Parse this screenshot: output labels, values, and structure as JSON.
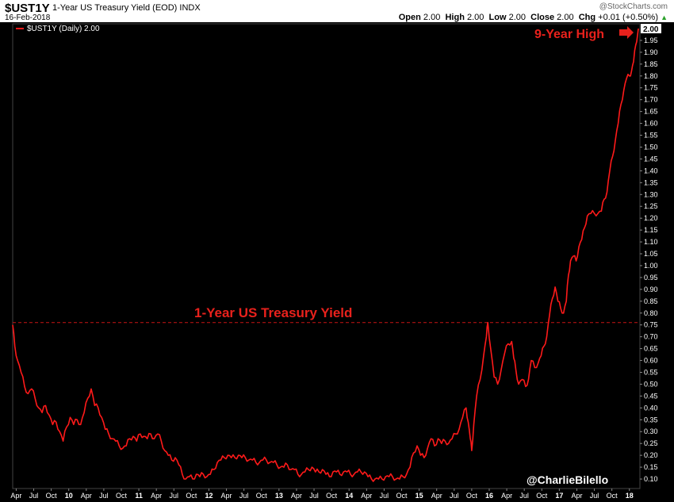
{
  "header": {
    "symbol": "$UST1Y",
    "name": "1-Year US Treasury Yield (EOD)",
    "exchange": "INDX",
    "date": "16-Feb-2018",
    "copyright": "@StockCharts.com",
    "open_label": "Open",
    "open": "2.00",
    "high_label": "High",
    "high": "2.00",
    "low_label": "Low",
    "low": "2.00",
    "close_label": "Close",
    "close": "2.00",
    "chg_label": "Chg",
    "chg": "+0.01 (+0.50%)"
  },
  "chart_data": {
    "type": "line",
    "legend": "$UST1Y (Daily) 2.00",
    "annotation_title": "1-Year US Treasury Yield",
    "annotation_high": "9-Year High",
    "credit": "@CharlieBilello",
    "last_value_label": "2.00",
    "reference_value": 0.76,
    "ylim": [
      0.06,
      2.02
    ],
    "yticks": [
      0.1,
      0.15,
      0.2,
      0.25,
      0.3,
      0.35,
      0.4,
      0.45,
      0.5,
      0.55,
      0.6,
      0.65,
      0.7,
      0.75,
      0.8,
      0.85,
      0.9,
      0.95,
      1.0,
      1.05,
      1.1,
      1.15,
      1.2,
      1.25,
      1.3,
      1.35,
      1.4,
      1.45,
      1.5,
      1.55,
      1.6,
      1.65,
      1.7,
      1.75,
      1.8,
      1.85,
      1.9,
      1.95
    ],
    "xlim": [
      2009.2,
      2018.15
    ],
    "x_tick_labels": [
      {
        "label": "Apr",
        "x": 2009.25
      },
      {
        "label": "Jul",
        "x": 2009.5
      },
      {
        "label": "Oct",
        "x": 2009.75
      },
      {
        "label": "10",
        "x": 2010.0
      },
      {
        "label": "Apr",
        "x": 2010.25
      },
      {
        "label": "Jul",
        "x": 2010.5
      },
      {
        "label": "Oct",
        "x": 2010.75
      },
      {
        "label": "11",
        "x": 2011.0
      },
      {
        "label": "Apr",
        "x": 2011.25
      },
      {
        "label": "Jul",
        "x": 2011.5
      },
      {
        "label": "Oct",
        "x": 2011.75
      },
      {
        "label": "12",
        "x": 2012.0
      },
      {
        "label": "Apr",
        "x": 2012.25
      },
      {
        "label": "Jul",
        "x": 2012.5
      },
      {
        "label": "Oct",
        "x": 2012.75
      },
      {
        "label": "13",
        "x": 2013.0
      },
      {
        "label": "Apr",
        "x": 2013.25
      },
      {
        "label": "Jul",
        "x": 2013.5
      },
      {
        "label": "Oct",
        "x": 2013.75
      },
      {
        "label": "14",
        "x": 2014.0
      },
      {
        "label": "Apr",
        "x": 2014.25
      },
      {
        "label": "Jul",
        "x": 2014.5
      },
      {
        "label": "Oct",
        "x": 2014.75
      },
      {
        "label": "15",
        "x": 2015.0
      },
      {
        "label": "Apr",
        "x": 2015.25
      },
      {
        "label": "Jul",
        "x": 2015.5
      },
      {
        "label": "Oct",
        "x": 2015.75
      },
      {
        "label": "16",
        "x": 2016.0
      },
      {
        "label": "Apr",
        "x": 2016.25
      },
      {
        "label": "Jul",
        "x": 2016.5
      },
      {
        "label": "Oct",
        "x": 2016.75
      },
      {
        "label": "17",
        "x": 2017.0
      },
      {
        "label": "Apr",
        "x": 2017.25
      },
      {
        "label": "Jul",
        "x": 2017.5
      },
      {
        "label": "Oct",
        "x": 2017.75
      },
      {
        "label": "18",
        "x": 2018.0
      }
    ],
    "series": [
      {
        "values": [
          [
            2009.2,
            0.75
          ],
          [
            2009.23,
            0.66
          ],
          [
            2009.27,
            0.6
          ],
          [
            2009.32,
            0.55
          ],
          [
            2009.37,
            0.49
          ],
          [
            2009.42,
            0.46
          ],
          [
            2009.47,
            0.48
          ],
          [
            2009.52,
            0.44
          ],
          [
            2009.57,
            0.4
          ],
          [
            2009.62,
            0.38
          ],
          [
            2009.67,
            0.41
          ],
          [
            2009.72,
            0.37
          ],
          [
            2009.77,
            0.33
          ],
          [
            2009.82,
            0.34
          ],
          [
            2009.87,
            0.3
          ],
          [
            2009.92,
            0.26
          ],
          [
            2009.97,
            0.32
          ],
          [
            2010.02,
            0.36
          ],
          [
            2010.07,
            0.33
          ],
          [
            2010.12,
            0.35
          ],
          [
            2010.17,
            0.33
          ],
          [
            2010.22,
            0.38
          ],
          [
            2010.27,
            0.44
          ],
          [
            2010.32,
            0.48
          ],
          [
            2010.37,
            0.41
          ],
          [
            2010.42,
            0.4
          ],
          [
            2010.47,
            0.36
          ],
          [
            2010.52,
            0.31
          ],
          [
            2010.57,
            0.29
          ],
          [
            2010.62,
            0.27
          ],
          [
            2010.67,
            0.26
          ],
          [
            2010.72,
            0.24
          ],
          [
            2010.77,
            0.23
          ],
          [
            2010.82,
            0.24
          ],
          [
            2010.87,
            0.27
          ],
          [
            2010.92,
            0.28
          ],
          [
            2010.97,
            0.26
          ],
          [
            2011.02,
            0.29
          ],
          [
            2011.07,
            0.28
          ],
          [
            2011.12,
            0.27
          ],
          [
            2011.17,
            0.29
          ],
          [
            2011.22,
            0.27
          ],
          [
            2011.27,
            0.29
          ],
          [
            2011.32,
            0.26
          ],
          [
            2011.37,
            0.22
          ],
          [
            2011.42,
            0.2
          ],
          [
            2011.47,
            0.18
          ],
          [
            2011.52,
            0.19
          ],
          [
            2011.57,
            0.16
          ],
          [
            2011.62,
            0.12
          ],
          [
            2011.67,
            0.1
          ],
          [
            2011.72,
            0.11
          ],
          [
            2011.77,
            0.1
          ],
          [
            2011.82,
            0.12
          ],
          [
            2011.87,
            0.11
          ],
          [
            2011.92,
            0.12
          ],
          [
            2011.97,
            0.11
          ],
          [
            2012.02,
            0.12
          ],
          [
            2012.07,
            0.14
          ],
          [
            2012.12,
            0.17
          ],
          [
            2012.17,
            0.18
          ],
          [
            2012.22,
            0.19
          ],
          [
            2012.27,
            0.2
          ],
          [
            2012.32,
            0.19
          ],
          [
            2012.37,
            0.19
          ],
          [
            2012.42,
            0.2
          ],
          [
            2012.47,
            0.19
          ],
          [
            2012.52,
            0.19
          ],
          [
            2012.57,
            0.18
          ],
          [
            2012.62,
            0.18
          ],
          [
            2012.67,
            0.17
          ],
          [
            2012.72,
            0.17
          ],
          [
            2012.77,
            0.18
          ],
          [
            2012.82,
            0.18
          ],
          [
            2012.87,
            0.17
          ],
          [
            2012.92,
            0.17
          ],
          [
            2012.97,
            0.16
          ],
          [
            2013.02,
            0.15
          ],
          [
            2013.07,
            0.15
          ],
          [
            2013.12,
            0.16
          ],
          [
            2013.17,
            0.14
          ],
          [
            2013.22,
            0.14
          ],
          [
            2013.27,
            0.12
          ],
          [
            2013.32,
            0.12
          ],
          [
            2013.37,
            0.13
          ],
          [
            2013.42,
            0.14
          ],
          [
            2013.47,
            0.15
          ],
          [
            2013.52,
            0.13
          ],
          [
            2013.57,
            0.13
          ],
          [
            2013.62,
            0.14
          ],
          [
            2013.67,
            0.12
          ],
          [
            2013.72,
            0.11
          ],
          [
            2013.77,
            0.13
          ],
          [
            2013.82,
            0.13
          ],
          [
            2013.87,
            0.12
          ],
          [
            2013.92,
            0.13
          ],
          [
            2013.97,
            0.13
          ],
          [
            2014.02,
            0.12
          ],
          [
            2014.07,
            0.12
          ],
          [
            2014.12,
            0.13
          ],
          [
            2014.17,
            0.13
          ],
          [
            2014.22,
            0.13
          ],
          [
            2014.27,
            0.11
          ],
          [
            2014.32,
            0.1
          ],
          [
            2014.37,
            0.1
          ],
          [
            2014.42,
            0.1
          ],
          [
            2014.47,
            0.1
          ],
          [
            2014.52,
            0.11
          ],
          [
            2014.57,
            0.11
          ],
          [
            2014.62,
            0.11
          ],
          [
            2014.67,
            0.1
          ],
          [
            2014.72,
            0.1
          ],
          [
            2014.77,
            0.11
          ],
          [
            2014.82,
            0.12
          ],
          [
            2014.87,
            0.15
          ],
          [
            2014.92,
            0.21
          ],
          [
            2014.97,
            0.24
          ],
          [
            2015.02,
            0.2
          ],
          [
            2015.07,
            0.19
          ],
          [
            2015.12,
            0.23
          ],
          [
            2015.17,
            0.27
          ],
          [
            2015.22,
            0.24
          ],
          [
            2015.27,
            0.27
          ],
          [
            2015.32,
            0.25
          ],
          [
            2015.37,
            0.26
          ],
          [
            2015.42,
            0.25
          ],
          [
            2015.47,
            0.27
          ],
          [
            2015.52,
            0.29
          ],
          [
            2015.57,
            0.31
          ],
          [
            2015.62,
            0.36
          ],
          [
            2015.67,
            0.4
          ],
          [
            2015.7,
            0.34
          ],
          [
            2015.73,
            0.27
          ],
          [
            2015.75,
            0.22
          ],
          [
            2015.78,
            0.33
          ],
          [
            2015.82,
            0.45
          ],
          [
            2015.87,
            0.52
          ],
          [
            2015.92,
            0.62
          ],
          [
            2015.96,
            0.7
          ],
          [
            2015.98,
            0.76
          ],
          [
            2016.02,
            0.65
          ],
          [
            2016.07,
            0.53
          ],
          [
            2016.12,
            0.5
          ],
          [
            2016.17,
            0.56
          ],
          [
            2016.22,
            0.63
          ],
          [
            2016.27,
            0.67
          ],
          [
            2016.32,
            0.68
          ],
          [
            2016.35,
            0.61
          ],
          [
            2016.38,
            0.56
          ],
          [
            2016.42,
            0.5
          ],
          [
            2016.47,
            0.52
          ],
          [
            2016.52,
            0.49
          ],
          [
            2016.56,
            0.52
          ],
          [
            2016.6,
            0.6
          ],
          [
            2016.65,
            0.57
          ],
          [
            2016.7,
            0.59
          ],
          [
            2016.74,
            0.62
          ],
          [
            2016.78,
            0.66
          ],
          [
            2016.82,
            0.7
          ],
          [
            2016.86,
            0.79
          ],
          [
            2016.9,
            0.86
          ],
          [
            2016.94,
            0.91
          ],
          [
            2016.98,
            0.85
          ],
          [
            2017.02,
            0.82
          ],
          [
            2017.06,
            0.8
          ],
          [
            2017.1,
            0.85
          ],
          [
            2017.13,
            0.96
          ],
          [
            2017.16,
            1.02
          ],
          [
            2017.2,
            1.04
          ],
          [
            2017.24,
            1.02
          ],
          [
            2017.28,
            1.08
          ],
          [
            2017.32,
            1.11
          ],
          [
            2017.36,
            1.16
          ],
          [
            2017.4,
            1.21
          ],
          [
            2017.45,
            1.22
          ],
          [
            2017.5,
            1.22
          ],
          [
            2017.55,
            1.22
          ],
          [
            2017.6,
            1.23
          ],
          [
            2017.64,
            1.28
          ],
          [
            2017.68,
            1.31
          ],
          [
            2017.72,
            1.4
          ],
          [
            2017.76,
            1.46
          ],
          [
            2017.8,
            1.53
          ],
          [
            2017.84,
            1.6
          ],
          [
            2017.88,
            1.68
          ],
          [
            2017.92,
            1.74
          ],
          [
            2017.96,
            1.79
          ],
          [
            2018.0,
            1.8
          ],
          [
            2018.03,
            1.82
          ],
          [
            2018.06,
            1.86
          ],
          [
            2018.09,
            1.93
          ],
          [
            2018.12,
            1.98
          ],
          [
            2018.13,
            2.0
          ]
        ]
      }
    ]
  },
  "colors": {
    "background": "#000000",
    "line": "#ff1a1a",
    "reference": "#c81414",
    "annotation": "#e8211c",
    "axis_text": "#ffffff"
  }
}
